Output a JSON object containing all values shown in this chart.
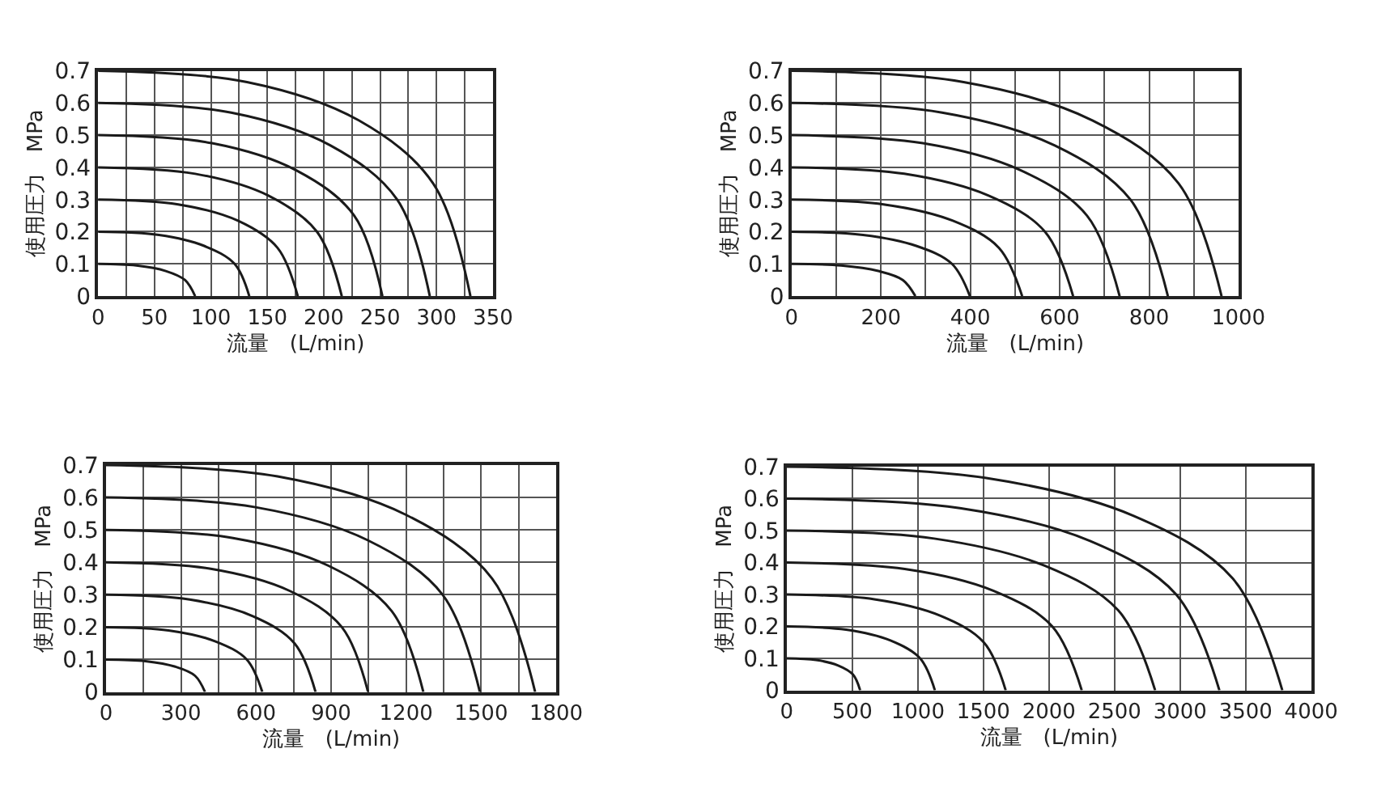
{
  "chart_data": [
    {
      "type": "line",
      "xlabel": "流量　(L/min)",
      "ylabel": "使用圧力　MPa",
      "xlim": [
        0,
        350
      ],
      "ylim": [
        0,
        0.7
      ],
      "xticks": [
        0,
        {
          "value": 25,
          "label": null
        },
        50,
        {
          "value": 75,
          "label": null
        },
        100,
        {
          "value": 125,
          "label": null
        },
        150,
        {
          "value": 175,
          "label": null
        },
        200,
        {
          "value": 225,
          "label": null
        },
        250,
        {
          "value": 275,
          "label": null
        },
        300,
        {
          "value": 325,
          "label": null
        },
        350
      ],
      "yticks": [
        0,
        0.1,
        0.2,
        0.3,
        0.4,
        0.5,
        0.6,
        0.7
      ],
      "grid": true,
      "line_style": "solid",
      "marker": "none",
      "series": [
        {
          "color": "#1a1a1a",
          "x": [
            0,
            34,
            60,
            77,
            86
          ],
          "values": [
            0.1,
            0.095,
            0.078,
            0.05,
            0
          ]
        },
        {
          "color": "#1a1a1a",
          "x": [
            0,
            54,
            94,
            121,
            134
          ],
          "values": [
            0.2,
            0.19,
            0.156,
            0.1,
            0
          ]
        },
        {
          "color": "#1a1a1a",
          "x": [
            0,
            71,
            124,
            159,
            177
          ],
          "values": [
            0.3,
            0.285,
            0.234,
            0.15,
            0
          ]
        },
        {
          "color": "#1a1a1a",
          "x": [
            0,
            86,
            151,
            194,
            216
          ],
          "values": [
            0.4,
            0.38,
            0.312,
            0.2,
            0
          ]
        },
        {
          "color": "#1a1a1a",
          "x": [
            0,
            101,
            176,
            227,
            252
          ],
          "values": [
            0.5,
            0.475,
            0.39,
            0.25,
            0
          ]
        },
        {
          "color": "#1a1a1a",
          "x": [
            0,
            118,
            206,
            265,
            294
          ],
          "values": [
            0.6,
            0.57,
            0.468,
            0.3,
            0
          ]
        },
        {
          "color": "#1a1a1a",
          "x": [
            0,
            132,
            231,
            297,
            330
          ],
          "values": [
            0.7,
            0.665,
            0.546,
            0.35,
            0
          ]
        }
      ]
    },
    {
      "type": "line",
      "xlabel": "流量　(L/min)",
      "ylabel": "使用圧力　MPa",
      "xlim": [
        0,
        1000
      ],
      "ylim": [
        0,
        0.7
      ],
      "xticks": [
        0,
        {
          "value": 100,
          "label": null
        },
        200,
        {
          "value": 300,
          "label": null
        },
        400,
        {
          "value": 500,
          "label": null
        },
        600,
        {
          "value": 700,
          "label": null
        },
        800,
        {
          "value": 900,
          "label": null
        },
        1000
      ],
      "yticks": [
        0,
        0.1,
        0.2,
        0.3,
        0.4,
        0.5,
        0.6,
        0.7
      ],
      "grid": true,
      "line_style": "solid",
      "marker": "none",
      "series": [
        {
          "color": "#1a1a1a",
          "x": [
            0,
            111,
            194,
            249,
            277
          ],
          "values": [
            0.1,
            0.095,
            0.078,
            0.05,
            0
          ]
        },
        {
          "color": "#1a1a1a",
          "x": [
            0,
            160,
            279,
            359,
            399
          ],
          "values": [
            0.2,
            0.19,
            0.156,
            0.1,
            0
          ]
        },
        {
          "color": "#1a1a1a",
          "x": [
            0,
            206,
            361,
            464,
            516
          ],
          "values": [
            0.3,
            0.285,
            0.234,
            0.15,
            0
          ]
        },
        {
          "color": "#1a1a1a",
          "x": [
            0,
            252,
            441,
            567,
            630
          ],
          "values": [
            0.4,
            0.38,
            0.312,
            0.2,
            0
          ]
        },
        {
          "color": "#1a1a1a",
          "x": [
            0,
            294,
            514,
            661,
            734
          ],
          "values": [
            0.5,
            0.475,
            0.39,
            0.25,
            0
          ]
        },
        {
          "color": "#1a1a1a",
          "x": [
            0,
            337,
            589,
            758,
            842
          ],
          "values": [
            0.6,
            0.57,
            0.468,
            0.3,
            0
          ]
        },
        {
          "color": "#1a1a1a",
          "x": [
            0,
            385,
            673,
            866,
            962
          ],
          "values": [
            0.7,
            0.665,
            0.546,
            0.35,
            0
          ]
        }
      ]
    },
    {
      "type": "line",
      "xlabel": "流量　(L/min)",
      "ylabel": "使用圧力　MPa",
      "xlim": [
        0,
        1800
      ],
      "ylim": [
        0,
        0.7
      ],
      "xticks": [
        0,
        {
          "value": 150,
          "label": null
        },
        300,
        {
          "value": 450,
          "label": null
        },
        600,
        {
          "value": 750,
          "label": null
        },
        900,
        {
          "value": 1050,
          "label": null
        },
        1200,
        {
          "value": 1350,
          "label": null
        },
        1500,
        {
          "value": 1650,
          "label": null
        },
        1800
      ],
      "yticks": [
        0,
        0.1,
        0.2,
        0.3,
        0.4,
        0.5,
        0.6,
        0.7
      ],
      "grid": true,
      "line_style": "solid",
      "marker": "none",
      "series": [
        {
          "color": "#1a1a1a",
          "x": [
            0,
            158,
            277,
            356,
            396
          ],
          "values": [
            0.1,
            0.095,
            0.078,
            0.05,
            0
          ]
        },
        {
          "color": "#1a1a1a",
          "x": [
            0,
            250,
            438,
            563,
            625
          ],
          "values": [
            0.2,
            0.19,
            0.156,
            0.1,
            0
          ]
        },
        {
          "color": "#1a1a1a",
          "x": [
            0,
            335,
            587,
            754,
            838
          ],
          "values": [
            0.3,
            0.285,
            0.234,
            0.15,
            0
          ]
        },
        {
          "color": "#1a1a1a",
          "x": [
            0,
            419,
            734,
            943,
            1048
          ],
          "values": [
            0.4,
            0.38,
            0.312,
            0.2,
            0
          ]
        },
        {
          "color": "#1a1a1a",
          "x": [
            0,
            508,
            888,
            1142,
            1269
          ],
          "values": [
            0.5,
            0.475,
            0.39,
            0.25,
            0
          ]
        },
        {
          "color": "#1a1a1a",
          "x": [
            0,
            598,
            1047,
            1346,
            1495
          ],
          "values": [
            0.6,
            0.57,
            0.468,
            0.3,
            0
          ]
        },
        {
          "color": "#1a1a1a",
          "x": [
            0,
            686,
            1201,
            1544,
            1716
          ],
          "values": [
            0.7,
            0.665,
            0.546,
            0.35,
            0
          ]
        }
      ]
    },
    {
      "type": "line",
      "xlabel": "流量　(L/min)",
      "ylabel": "使用圧力　MPa",
      "xlim": [
        0,
        4000
      ],
      "ylim": [
        0,
        0.7
      ],
      "xticks": [
        0,
        500,
        1000,
        1500,
        2000,
        2500,
        3000,
        3500,
        4000
      ],
      "yticks": [
        0,
        0.1,
        0.2,
        0.3,
        0.4,
        0.5,
        0.6,
        0.7
      ],
      "grid": true,
      "line_style": "solid",
      "marker": "none",
      "series": [
        {
          "color": "#1a1a1a",
          "x": [
            0,
            224,
            392,
            504,
            560
          ],
          "values": [
            0.1,
            0.095,
            0.078,
            0.05,
            0
          ]
        },
        {
          "color": "#1a1a1a",
          "x": [
            0,
            452,
            791,
            1017,
            1130
          ],
          "values": [
            0.2,
            0.19,
            0.156,
            0.1,
            0
          ]
        },
        {
          "color": "#1a1a1a",
          "x": [
            0,
            668,
            1169,
            1503,
            1670
          ],
          "values": [
            0.3,
            0.285,
            0.234,
            0.15,
            0
          ]
        },
        {
          "color": "#1a1a1a",
          "x": [
            0,
            900,
            1575,
            2025,
            2250
          ],
          "values": [
            0.4,
            0.38,
            0.312,
            0.2,
            0
          ]
        },
        {
          "color": "#1a1a1a",
          "x": [
            0,
            1124,
            1967,
            2529,
            2810
          ],
          "values": [
            0.5,
            0.475,
            0.39,
            0.25,
            0
          ]
        },
        {
          "color": "#1a1a1a",
          "x": [
            0,
            1320,
            2310,
            2970,
            3300
          ],
          "values": [
            0.6,
            0.57,
            0.468,
            0.3,
            0
          ]
        },
        {
          "color": "#1a1a1a",
          "x": [
            0,
            1512,
            2646,
            3402,
            3780
          ],
          "values": [
            0.7,
            0.665,
            0.546,
            0.35,
            0
          ]
        }
      ]
    }
  ]
}
